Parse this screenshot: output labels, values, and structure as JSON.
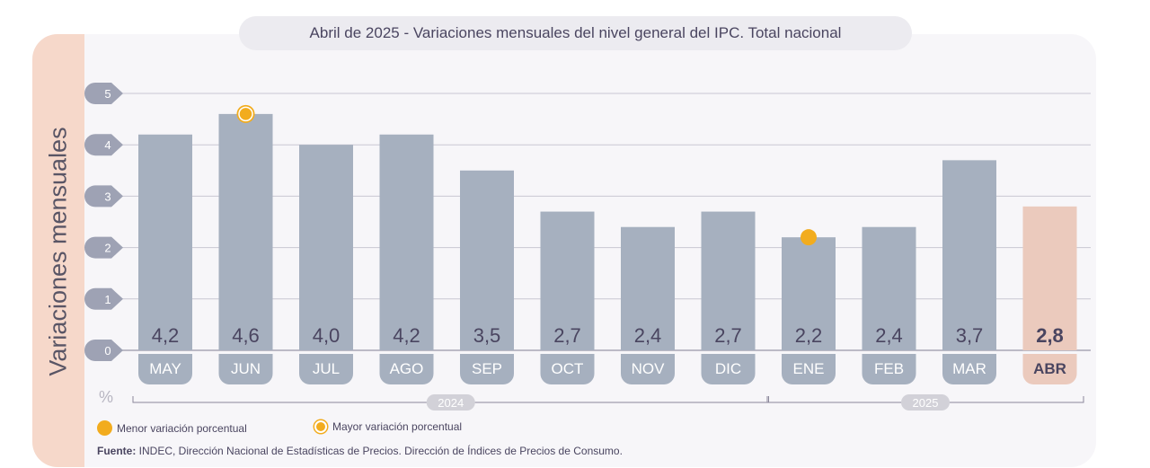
{
  "title": {
    "date": "Abril de 2025",
    "separator": " - ",
    "text": "Variaciones mensuales del nivel general del IPC. Total nacional"
  },
  "colors": {
    "bar": "#a6b0bf",
    "highlight_bar": "#ebcabd",
    "marker": "#f2ac1e",
    "label_text": "#4a4560",
    "tick_badge": "#9ea2b4"
  },
  "chart_data": {
    "type": "bar",
    "title": "Abril de 2025 - Variaciones mensuales del nivel general del IPC. Total nacional",
    "ylabel": "Variaciones mensuales",
    "yunit": "%",
    "ylim": [
      0,
      5
    ],
    "yticks": [
      "0",
      "1",
      "2",
      "3",
      "4",
      "5"
    ],
    "categories": [
      "MAY",
      "JUN",
      "JUL",
      "AGO",
      "SEP",
      "OCT",
      "NOV",
      "DIC",
      "ENE",
      "FEB",
      "MAR",
      "ABR"
    ],
    "values": [
      4.2,
      4.6,
      4.0,
      4.2,
      3.5,
      2.7,
      2.4,
      2.7,
      2.2,
      2.4,
      3.7,
      2.8
    ],
    "value_labels": [
      "4,2",
      "4,6",
      "4,0",
      "4,2",
      "3,5",
      "2,7",
      "2,4",
      "2,7",
      "2,2",
      "2,4",
      "3,7",
      "2,8"
    ],
    "highlight_index": 11,
    "max_marker_index": 1,
    "min_marker_index": 8,
    "year_groups": [
      {
        "label": "2024",
        "start": 0,
        "end": 7
      },
      {
        "label": "2025",
        "start": 8,
        "end": 11
      }
    ],
    "grid": true
  },
  "legend": {
    "min_label": "Menor variación porcentual",
    "max_label": "Mayor variación porcentual"
  },
  "source": {
    "label": "Fuente:",
    "text": " INDEC, Dirección Nacional de Estadísticas de Precios. Dirección de Índices de Precios de Consumo."
  }
}
